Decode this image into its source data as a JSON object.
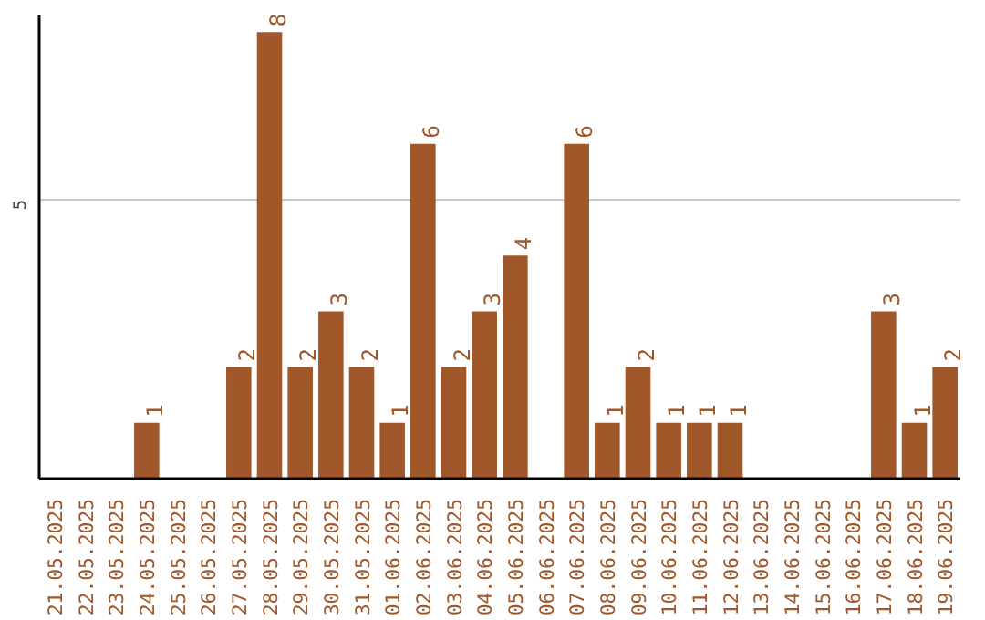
{
  "chart_data": {
    "type": "bar",
    "categories": [
      "21.05.2025",
      "22.05.2025",
      "23.05.2025",
      "24.05.2025",
      "25.05.2025",
      "26.05.2025",
      "27.05.2025",
      "28.05.2025",
      "29.05.2025",
      "30.05.2025",
      "31.05.2025",
      "01.06.2025",
      "02.06.2025",
      "03.06.2025",
      "04.06.2025",
      "05.06.2025",
      "06.06.2025",
      "07.06.2025",
      "08.06.2025",
      "09.06.2025",
      "10.06.2025",
      "11.06.2025",
      "12.06.2025",
      "13.06.2025",
      "14.06.2025",
      "15.06.2025",
      "16.06.2025",
      "17.06.2025",
      "18.06.2025",
      "19.06.2025"
    ],
    "values": [
      null,
      null,
      null,
      1,
      null,
      null,
      2,
      8,
      2,
      3,
      2,
      1,
      6,
      2,
      3,
      4,
      null,
      6,
      1,
      2,
      1,
      1,
      1,
      null,
      null,
      null,
      null,
      3,
      1,
      2
    ],
    "color": "#a0582a",
    "ylim": [
      0,
      8.3
    ],
    "yticks": [
      5
    ],
    "grid": "y",
    "data_labels": true
  }
}
